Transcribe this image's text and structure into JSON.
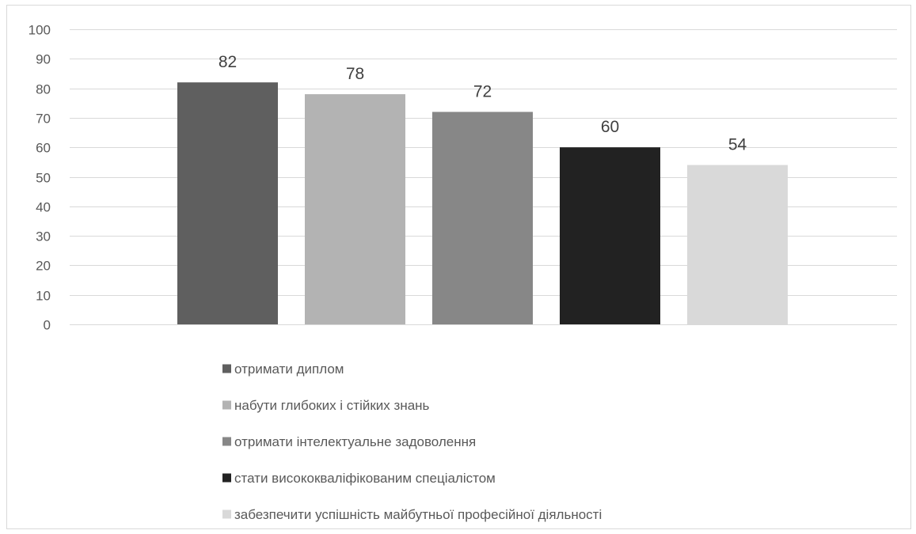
{
  "chart_data": {
    "type": "bar",
    "categories": [
      "отримати диплом",
      "набути глибоких і стійких знань",
      "отримати інтелектуальне задоволення",
      "стати висококваліфікованим спеціалістом",
      "забезпечити успішність майбутньої професійної діяльності"
    ],
    "values": [
      82,
      78,
      72,
      60,
      54
    ],
    "value_labels": [
      "82",
      "78",
      "72",
      "60",
      "54"
    ],
    "colors": [
      "#5f5f5f",
      "#b3b3b3",
      "#878787",
      "#222222",
      "#d9d9d9"
    ],
    "ylim": [
      0,
      100
    ],
    "yticks": [
      0,
      10,
      20,
      30,
      40,
      50,
      60,
      70,
      80,
      90,
      100
    ],
    "ytick_labels": [
      "0",
      "10",
      "20",
      "30",
      "40",
      "50",
      "60",
      "70",
      "80",
      "90",
      "100"
    ],
    "grid": true,
    "gridline_color": "#d9d9d9",
    "legend_position": "bottom",
    "title": "",
    "xlabel": "",
    "ylabel": ""
  }
}
